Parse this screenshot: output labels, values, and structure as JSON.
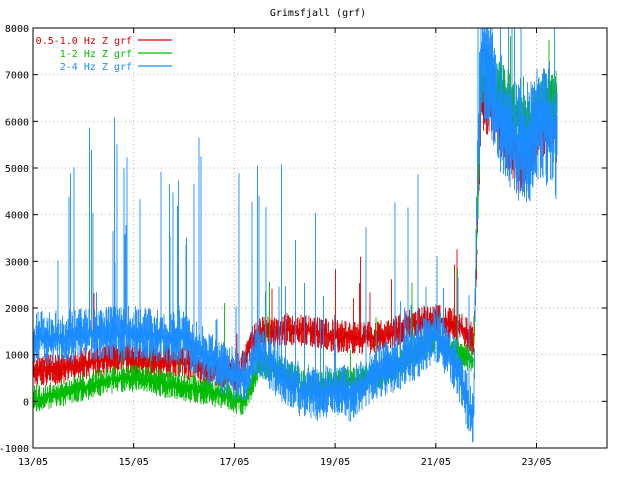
{
  "chart_data": {
    "type": "line",
    "title": "Grimsfjall (grf)",
    "xlabel": "",
    "ylabel": "",
    "x_unit": "day of May",
    "xlim": [
      13,
      24.4
    ],
    "ylim": [
      -1000,
      8000
    ],
    "x_ticks": [
      {
        "x": 13,
        "label": "13/05"
      },
      {
        "x": 15,
        "label": "15/05"
      },
      {
        "x": 17,
        "label": "17/05"
      },
      {
        "x": 19,
        "label": "19/05"
      },
      {
        "x": 21,
        "label": "21/05"
      },
      {
        "x": 23,
        "label": "23/05"
      }
    ],
    "y_ticks": [
      -1000,
      0,
      1000,
      2000,
      3000,
      4000,
      5000,
      6000,
      7000,
      8000
    ],
    "grid": true,
    "legend_position": "top-left",
    "series": [
      {
        "name": "0.5-1.0 Hz Z grf",
        "color": "#dd0000",
        "points": [
          [
            13.0,
            650
          ],
          [
            13.5,
            700
          ],
          [
            14.0,
            800
          ],
          [
            14.5,
            900
          ],
          [
            14.8,
            950
          ],
          [
            15.0,
            900
          ],
          [
            15.5,
            850
          ],
          [
            16.0,
            850
          ],
          [
            16.3,
            700
          ],
          [
            16.6,
            650
          ],
          [
            16.9,
            600
          ],
          [
            17.1,
            550
          ],
          [
            17.3,
            1200
          ],
          [
            17.5,
            1450
          ],
          [
            18.0,
            1550
          ],
          [
            18.5,
            1500
          ],
          [
            19.0,
            1400
          ],
          [
            19.5,
            1350
          ],
          [
            20.0,
            1400
          ],
          [
            20.5,
            1650
          ],
          [
            21.0,
            1750
          ],
          [
            21.5,
            1600
          ],
          [
            21.75,
            1300
          ],
          [
            21.8,
            2500
          ],
          [
            21.9,
            6600
          ],
          [
            22.2,
            6200
          ],
          [
            22.5,
            5500
          ],
          [
            22.8,
            5000
          ],
          [
            23.0,
            5600
          ],
          [
            23.3,
            6100
          ],
          [
            23.4,
            5800
          ]
        ]
      },
      {
        "name": "1-2 Hz Z grf",
        "color": "#00bb00",
        "points": [
          [
            13.0,
            50
          ],
          [
            13.5,
            150
          ],
          [
            14.0,
            300
          ],
          [
            14.5,
            450
          ],
          [
            15.0,
            500
          ],
          [
            15.5,
            400
          ],
          [
            16.0,
            300
          ],
          [
            16.5,
            200
          ],
          [
            16.9,
            100
          ],
          [
            17.2,
            -50
          ],
          [
            17.5,
            800
          ],
          [
            18.0,
            600
          ],
          [
            18.5,
            300
          ],
          [
            19.0,
            400
          ],
          [
            19.5,
            450
          ],
          [
            20.0,
            600
          ],
          [
            20.5,
            1000
          ],
          [
            21.0,
            1350
          ],
          [
            21.5,
            1000
          ],
          [
            21.75,
            900
          ],
          [
            21.8,
            3000
          ],
          [
            21.9,
            7000
          ],
          [
            22.2,
            6800
          ],
          [
            22.5,
            6300
          ],
          [
            22.8,
            5800
          ],
          [
            23.0,
            6200
          ],
          [
            23.3,
            6600
          ],
          [
            23.4,
            6400
          ]
        ]
      },
      {
        "name": "2-4 Hz Z grf",
        "color": "#1a8cff",
        "points": [
          [
            13.0,
            1350
          ],
          [
            13.5,
            1350
          ],
          [
            14.0,
            1400
          ],
          [
            14.5,
            1450
          ],
          [
            15.0,
            1450
          ],
          [
            15.5,
            1400
          ],
          [
            16.0,
            1350
          ],
          [
            16.5,
            900
          ],
          [
            16.9,
            600
          ],
          [
            17.2,
            500
          ],
          [
            17.5,
            1100
          ],
          [
            17.8,
            700
          ],
          [
            18.0,
            500
          ],
          [
            18.3,
            250
          ],
          [
            18.6,
            150
          ],
          [
            19.0,
            300
          ],
          [
            19.3,
            150
          ],
          [
            19.6,
            400
          ],
          [
            20.0,
            700
          ],
          [
            20.3,
            850
          ],
          [
            20.6,
            1050
          ],
          [
            21.0,
            1450
          ],
          [
            21.3,
            1000
          ],
          [
            21.5,
            500
          ],
          [
            21.7,
            -300
          ],
          [
            21.75,
            -350
          ],
          [
            21.8,
            3500
          ],
          [
            21.9,
            7600
          ],
          [
            22.2,
            6400
          ],
          [
            22.5,
            5700
          ],
          [
            22.8,
            5500
          ],
          [
            23.0,
            5800
          ],
          [
            23.3,
            6000
          ],
          [
            23.4,
            5500
          ]
        ]
      }
    ]
  }
}
